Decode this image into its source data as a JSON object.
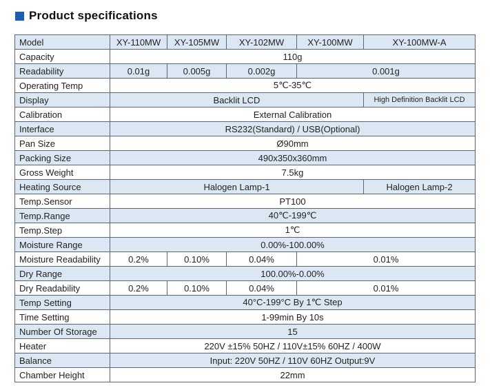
{
  "heading": {
    "title": "Product specifications"
  },
  "colors": {
    "accent": "#1a5fb0",
    "row_alt": "#dbe8f4",
    "border": "#5b6472"
  },
  "table": {
    "rows": [
      {
        "label": "Model",
        "cells": [
          "XY-110MW",
          "XY-105MW",
          "XY-102MW",
          "XY-100MW",
          "XY-100MW-A"
        ]
      },
      {
        "label": "Capacity",
        "cells": [
          "110g"
        ]
      },
      {
        "label": "Readability",
        "cells": [
          "0.01g",
          "0.005g",
          "0.002g",
          "0.001g"
        ]
      },
      {
        "label": "Operating Temp",
        "cells": [
          "5℃-35℃"
        ]
      },
      {
        "label": "Display",
        "cells": [
          "Backlit LCD",
          "High Definition Backlit LCD"
        ]
      },
      {
        "label": "Calibration",
        "cells": [
          "External Calibration"
        ]
      },
      {
        "label": "Interface",
        "cells": [
          "RS232(Standard) / USB(Optional)"
        ]
      },
      {
        "label": "Pan Size",
        "cells": [
          "Ø90mm"
        ]
      },
      {
        "label": "Packing Size",
        "cells": [
          "490x350x360mm"
        ]
      },
      {
        "label": "Gross Weight",
        "cells": [
          "7.5kg"
        ]
      },
      {
        "label": "Heating Source",
        "cells": [
          "Halogen Lamp-1",
          "Halogen Lamp-2"
        ]
      },
      {
        "label": "Temp.Sensor",
        "cells": [
          "PT100"
        ]
      },
      {
        "label": "Temp.Range",
        "cells": [
          "40℃-199℃"
        ]
      },
      {
        "label": "Temp.Step",
        "cells": [
          "1℃"
        ]
      },
      {
        "label": "Moisture Range",
        "cells": [
          "0.00%-100.00%"
        ]
      },
      {
        "label": "Moisture Readability",
        "cells": [
          "0.2%",
          "0.10%",
          "0.04%",
          "0.01%"
        ]
      },
      {
        "label": "Dry Range",
        "cells": [
          "100.00%-0.00%"
        ]
      },
      {
        "label": "Dry Readability",
        "cells": [
          "0.2%",
          "0.10%",
          "0.04%",
          "0.01%"
        ]
      },
      {
        "label": "Temp Setting",
        "cells": [
          "40°C-199°C  By  1℃ Step"
        ]
      },
      {
        "label": "Time Setting",
        "cells": [
          "1-99min  By  10s"
        ]
      },
      {
        "label": "Number Of Storage",
        "cells": [
          "15"
        ]
      },
      {
        "label": "Heater",
        "cells": [
          "220V ±15%  50HZ / 110V±15%  60HZ / 400W"
        ]
      },
      {
        "label": "Balance",
        "cells": [
          "Input: 220V  50HZ / 110V  60HZ     Output:9V"
        ]
      },
      {
        "label": "Chamber Height",
        "cells": [
          "22mm"
        ]
      }
    ]
  }
}
